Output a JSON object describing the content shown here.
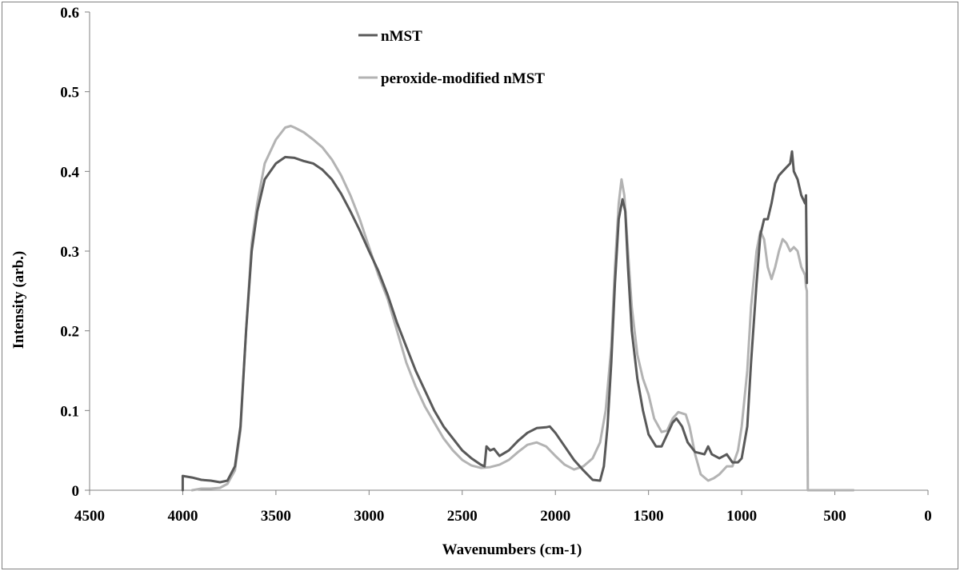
{
  "chart_data": {
    "type": "line",
    "title": "",
    "xlabel": "Wavenumbers  (cm-1)",
    "ylabel": "Intensity  (arb.)",
    "xlim": [
      4500,
      0
    ],
    "ylim": [
      0,
      0.6
    ],
    "x_reversed": true,
    "grid": false,
    "legend_position": "top-center",
    "xticks": [
      4500,
      4000,
      3500,
      3000,
      2500,
      2000,
      1500,
      1000,
      500,
      0
    ],
    "yticks": [
      0,
      0.1,
      0.2,
      0.3,
      0.4,
      0.5,
      0.6
    ],
    "xtick_labels": [
      "4500",
      "4000",
      "3500",
      "3000",
      "2500",
      "2000",
      "1500",
      "1000",
      "500",
      "0"
    ],
    "ytick_labels": [
      "0",
      "0.1",
      "0.2",
      "0.3",
      "0.4",
      "0.5",
      "0.6"
    ],
    "series": [
      {
        "name": "nMST",
        "color": "#595959",
        "points": [
          [
            4000,
            0
          ],
          [
            4000,
            0.018
          ],
          [
            3950,
            0.016
          ],
          [
            3900,
            0.013
          ],
          [
            3850,
            0.012
          ],
          [
            3800,
            0.01
          ],
          [
            3760,
            0.012
          ],
          [
            3720,
            0.03
          ],
          [
            3690,
            0.08
          ],
          [
            3660,
            0.2
          ],
          [
            3630,
            0.3
          ],
          [
            3600,
            0.35
          ],
          [
            3560,
            0.39
          ],
          [
            3500,
            0.41
          ],
          [
            3450,
            0.418
          ],
          [
            3400,
            0.417
          ],
          [
            3350,
            0.413
          ],
          [
            3300,
            0.41
          ],
          [
            3250,
            0.402
          ],
          [
            3200,
            0.39
          ],
          [
            3150,
            0.372
          ],
          [
            3100,
            0.35
          ],
          [
            3050,
            0.326
          ],
          [
            3000,
            0.3
          ],
          [
            2950,
            0.275
          ],
          [
            2900,
            0.245
          ],
          [
            2850,
            0.21
          ],
          [
            2800,
            0.18
          ],
          [
            2750,
            0.15
          ],
          [
            2700,
            0.125
          ],
          [
            2650,
            0.1
          ],
          [
            2600,
            0.08
          ],
          [
            2550,
            0.065
          ],
          [
            2500,
            0.05
          ],
          [
            2450,
            0.04
          ],
          [
            2400,
            0.032
          ],
          [
            2380,
            0.03
          ],
          [
            2370,
            0.055
          ],
          [
            2350,
            0.05
          ],
          [
            2330,
            0.052
          ],
          [
            2300,
            0.043
          ],
          [
            2250,
            0.05
          ],
          [
            2200,
            0.062
          ],
          [
            2150,
            0.072
          ],
          [
            2100,
            0.078
          ],
          [
            2050,
            0.079
          ],
          [
            2030,
            0.08
          ],
          [
            2000,
            0.072
          ],
          [
            1950,
            0.055
          ],
          [
            1900,
            0.038
          ],
          [
            1850,
            0.025
          ],
          [
            1800,
            0.013
          ],
          [
            1760,
            0.012
          ],
          [
            1740,
            0.03
          ],
          [
            1720,
            0.08
          ],
          [
            1700,
            0.16
          ],
          [
            1680,
            0.26
          ],
          [
            1660,
            0.34
          ],
          [
            1640,
            0.365
          ],
          [
            1625,
            0.35
          ],
          [
            1610,
            0.28
          ],
          [
            1590,
            0.2
          ],
          [
            1560,
            0.14
          ],
          [
            1530,
            0.1
          ],
          [
            1500,
            0.07
          ],
          [
            1460,
            0.055
          ],
          [
            1430,
            0.055
          ],
          [
            1400,
            0.07
          ],
          [
            1370,
            0.085
          ],
          [
            1350,
            0.09
          ],
          [
            1320,
            0.08
          ],
          [
            1290,
            0.06
          ],
          [
            1250,
            0.048
          ],
          [
            1200,
            0.045
          ],
          [
            1180,
            0.055
          ],
          [
            1160,
            0.045
          ],
          [
            1120,
            0.04
          ],
          [
            1080,
            0.045
          ],
          [
            1050,
            0.035
          ],
          [
            1020,
            0.035
          ],
          [
            1000,
            0.04
          ],
          [
            970,
            0.08
          ],
          [
            950,
            0.16
          ],
          [
            920,
            0.26
          ],
          [
            900,
            0.32
          ],
          [
            880,
            0.34
          ],
          [
            860,
            0.34
          ],
          [
            840,
            0.36
          ],
          [
            820,
            0.385
          ],
          [
            800,
            0.395
          ],
          [
            780,
            0.4
          ],
          [
            760,
            0.405
          ],
          [
            740,
            0.41
          ],
          [
            730,
            0.425
          ],
          [
            720,
            0.4
          ],
          [
            700,
            0.39
          ],
          [
            680,
            0.37
          ],
          [
            660,
            0.36
          ],
          [
            655,
            0.37
          ],
          [
            650,
            0.26
          ]
        ]
      },
      {
        "name": "peroxide-modified nMST",
        "color": "#b3b3b3",
        "points": [
          [
            3950,
            0
          ],
          [
            3900,
            0.002
          ],
          [
            3850,
            0.002
          ],
          [
            3800,
            0.003
          ],
          [
            3760,
            0.008
          ],
          [
            3720,
            0.025
          ],
          [
            3690,
            0.075
          ],
          [
            3660,
            0.2
          ],
          [
            3630,
            0.31
          ],
          [
            3600,
            0.36
          ],
          [
            3560,
            0.41
          ],
          [
            3500,
            0.44
          ],
          [
            3450,
            0.455
          ],
          [
            3420,
            0.457
          ],
          [
            3400,
            0.455
          ],
          [
            3350,
            0.449
          ],
          [
            3300,
            0.44
          ],
          [
            3250,
            0.43
          ],
          [
            3200,
            0.415
          ],
          [
            3150,
            0.395
          ],
          [
            3100,
            0.37
          ],
          [
            3050,
            0.34
          ],
          [
            3000,
            0.305
          ],
          [
            2950,
            0.27
          ],
          [
            2900,
            0.24
          ],
          [
            2850,
            0.2
          ],
          [
            2800,
            0.16
          ],
          [
            2750,
            0.13
          ],
          [
            2700,
            0.105
          ],
          [
            2650,
            0.085
          ],
          [
            2600,
            0.065
          ],
          [
            2550,
            0.05
          ],
          [
            2500,
            0.038
          ],
          [
            2450,
            0.031
          ],
          [
            2400,
            0.028
          ],
          [
            2350,
            0.029
          ],
          [
            2300,
            0.032
          ],
          [
            2250,
            0.038
          ],
          [
            2200,
            0.048
          ],
          [
            2150,
            0.057
          ],
          [
            2100,
            0.06
          ],
          [
            2050,
            0.055
          ],
          [
            2000,
            0.043
          ],
          [
            1950,
            0.032
          ],
          [
            1900,
            0.026
          ],
          [
            1850,
            0.03
          ],
          [
            1800,
            0.04
          ],
          [
            1760,
            0.06
          ],
          [
            1730,
            0.1
          ],
          [
            1700,
            0.18
          ],
          [
            1680,
            0.28
          ],
          [
            1660,
            0.36
          ],
          [
            1645,
            0.39
          ],
          [
            1630,
            0.37
          ],
          [
            1610,
            0.3
          ],
          [
            1590,
            0.23
          ],
          [
            1560,
            0.17
          ],
          [
            1530,
            0.14
          ],
          [
            1500,
            0.12
          ],
          [
            1470,
            0.09
          ],
          [
            1430,
            0.073
          ],
          [
            1400,
            0.075
          ],
          [
            1370,
            0.09
          ],
          [
            1340,
            0.098
          ],
          [
            1300,
            0.095
          ],
          [
            1280,
            0.08
          ],
          [
            1250,
            0.045
          ],
          [
            1220,
            0.02
          ],
          [
            1180,
            0.012
          ],
          [
            1150,
            0.015
          ],
          [
            1120,
            0.02
          ],
          [
            1080,
            0.03
          ],
          [
            1050,
            0.03
          ],
          [
            1020,
            0.05
          ],
          [
            1000,
            0.08
          ],
          [
            970,
            0.15
          ],
          [
            950,
            0.23
          ],
          [
            920,
            0.3
          ],
          [
            900,
            0.325
          ],
          [
            880,
            0.315
          ],
          [
            860,
            0.28
          ],
          [
            840,
            0.265
          ],
          [
            820,
            0.28
          ],
          [
            800,
            0.3
          ],
          [
            780,
            0.315
          ],
          [
            760,
            0.31
          ],
          [
            740,
            0.3
          ],
          [
            720,
            0.305
          ],
          [
            700,
            0.3
          ],
          [
            680,
            0.28
          ],
          [
            660,
            0.27
          ],
          [
            655,
            0.255
          ],
          [
            650,
            0.25
          ],
          [
            645,
            0
          ],
          [
            400,
            0
          ]
        ]
      }
    ]
  }
}
